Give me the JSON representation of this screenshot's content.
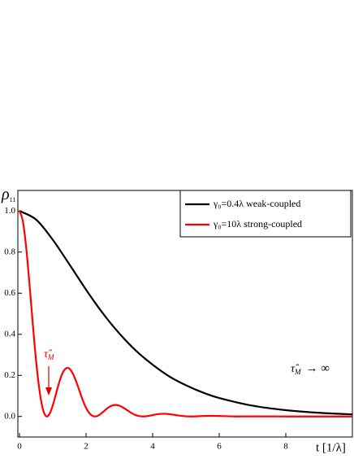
{
  "chart_data": {
    "type": "line",
    "ylabel": {
      "text": "ρ",
      "subscript": "11"
    },
    "xlabel": "t [1/λ]",
    "xlim": [
      0,
      10
    ],
    "ylim": [
      -0.1,
      1.1
    ],
    "xticks": [
      0,
      2,
      4,
      6,
      8
    ],
    "yticks": [
      {
        "value": 0,
        "label": "0.0"
      },
      0.2,
      0.4,
      0.6,
      0.8,
      {
        "value": 1,
        "label": "1.0"
      }
    ],
    "legend": "top-right",
    "series": [
      {
        "name": "γ₀=0.4λ  weak-coupled",
        "color": "#000000",
        "x": [
          0,
          0.5,
          1,
          1.5,
          2,
          2.5,
          3,
          3.5,
          4,
          4.5,
          5,
          5.5,
          6,
          7,
          8,
          9,
          10
        ],
        "values": [
          1.0,
          0.958,
          0.86,
          0.74,
          0.617,
          0.503,
          0.404,
          0.32,
          0.252,
          0.195,
          0.152,
          0.117,
          0.09,
          0.0526,
          0.0307,
          0.0178,
          0.0103
        ]
      },
      {
        "name": "γ₀=10λ  strong-coupled",
        "color": "#ff0000",
        "x": [
          0,
          0.1,
          0.2,
          0.3,
          0.4,
          0.5,
          0.6,
          0.7,
          0.8,
          0.9,
          1.0,
          1.1,
          1.2,
          1.3,
          1.4,
          1.5,
          1.6,
          1.7,
          1.8,
          1.9,
          2.0,
          2.1,
          2.2,
          2.3,
          2.4,
          2.5,
          2.6,
          2.7,
          2.8,
          2.9,
          3.0,
          3.1,
          3.2,
          3.3,
          3.4,
          3.5,
          3.6,
          3.7,
          3.8,
          3.9,
          4.0,
          4.2,
          4.4,
          4.6,
          4.8,
          5.0,
          5.2,
          5.4,
          5.6,
          5.8,
          6.0,
          6.5,
          7,
          8,
          9,
          10
        ],
        "values": [
          1.0,
          0.9524,
          0.8243,
          0.6453,
          0.4499,
          0.2692,
          0.1276,
          0.0374,
          0.0013,
          0.0115,
          0.054,
          0.112,
          0.1695,
          0.2132,
          0.2345,
          0.2326,
          0.2095,
          0.1712,
          0.1257,
          0.0793,
          0.0423,
          0.0163,
          0.0024,
          0.0006,
          0.0079,
          0.0206,
          0.0346,
          0.0466,
          0.054,
          0.056,
          0.0524,
          0.0446,
          0.0343,
          0.0234,
          0.0136,
          0.0061,
          0.0016,
          0.0,
          0.0009,
          0.0035,
          0.0068,
          0.0122,
          0.0129,
          0.0092,
          0.0041,
          0.0007,
          0.0001,
          0.0013,
          0.0027,
          0.0031,
          0.0024,
          0.0001,
          0.0006,
          0.0,
          0.0,
          0.0
        ]
      }
    ],
    "annotations": [
      {
        "text": "τ̂",
        "subscript": "M"
      },
      {
        "text": "τ̂",
        "subscript": "M",
        "suffix": "→ ∞"
      }
    ]
  }
}
